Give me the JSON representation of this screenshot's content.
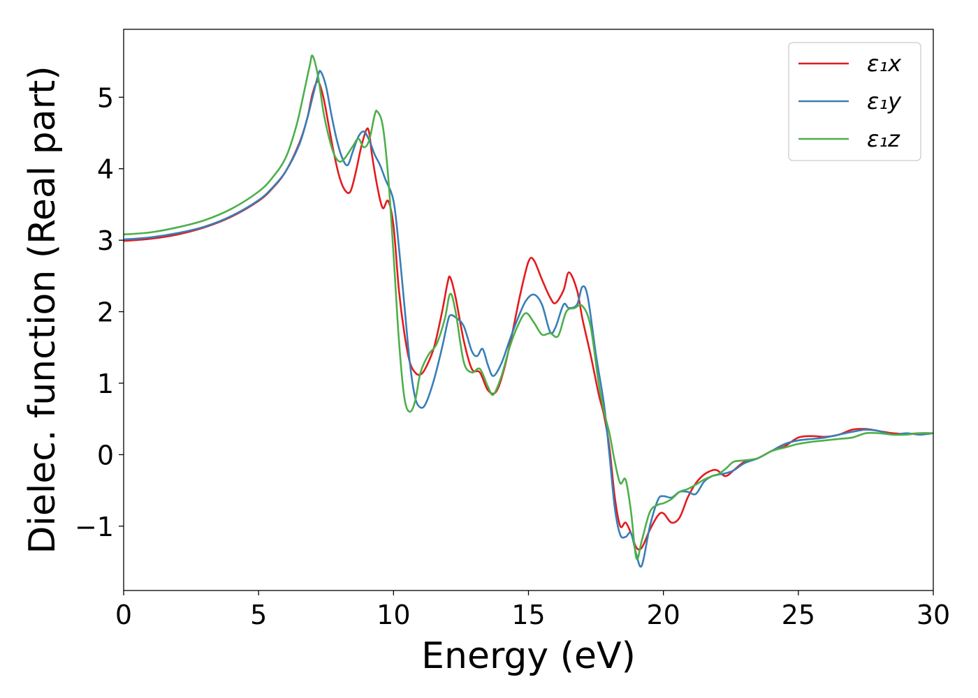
{
  "chart_data": {
    "type": "line",
    "xlabel": "Energy (eV)",
    "ylabel": "Dielec. function (Real part)",
    "xlim": [
      0,
      30
    ],
    "ylim": [
      -1.9,
      5.95
    ],
    "xticks": [
      0,
      5,
      10,
      15,
      20,
      25,
      30
    ],
    "xtick_labels": [
      "0",
      "5",
      "10",
      "15",
      "20",
      "25",
      "30"
    ],
    "yticks": [
      -1,
      0,
      1,
      2,
      3,
      4,
      5
    ],
    "ytick_labels": [
      "−1",
      "0",
      "1",
      "2",
      "3",
      "4",
      "5"
    ],
    "grid": false,
    "legend_position": "top-right",
    "series": [
      {
        "name": "ε₁x",
        "color": "#e41a1c",
        "x": [
          0,
          1,
          2,
          3,
          4,
          5,
          5.5,
          6,
          6.5,
          6.8,
          7.0,
          7.2,
          7.4,
          7.6,
          7.8,
          8.0,
          8.2,
          8.4,
          8.6,
          8.8,
          9.0,
          9.1,
          9.2,
          9.4,
          9.6,
          9.8,
          10.0,
          10.2,
          10.4,
          10.6,
          10.8,
          11.0,
          11.2,
          11.5,
          11.8,
          12.0,
          12.1,
          12.3,
          12.6,
          12.9,
          13.2,
          13.5,
          13.8,
          14.1,
          14.4,
          14.7,
          15.0,
          15.2,
          15.5,
          15.8,
          16.0,
          16.3,
          16.5,
          16.8,
          17.0,
          17.3,
          17.6,
          17.8,
          18.0,
          18.2,
          18.4,
          18.6,
          18.8,
          19.0,
          19.2,
          19.5,
          19.8,
          20.0,
          20.3,
          20.6,
          20.9,
          21.2,
          21.5,
          21.8,
          22.0,
          22.3,
          22.6,
          23.0,
          23.5,
          24.0,
          24.5,
          25.0,
          25.5,
          26.0,
          26.5,
          27.0,
          27.5,
          28.0,
          28.5,
          29.0,
          29.5,
          30.0
        ],
        "values": [
          2.99,
          3.02,
          3.08,
          3.18,
          3.33,
          3.55,
          3.72,
          3.96,
          4.35,
          4.7,
          5.05,
          5.22,
          5.0,
          4.6,
          4.2,
          3.88,
          3.7,
          3.68,
          3.95,
          4.3,
          4.55,
          4.5,
          4.2,
          3.75,
          3.45,
          3.55,
          3.2,
          2.3,
          1.7,
          1.3,
          1.15,
          1.12,
          1.22,
          1.5,
          2.0,
          2.4,
          2.48,
          2.2,
          1.6,
          1.2,
          1.15,
          0.9,
          0.88,
          1.2,
          1.7,
          2.25,
          2.7,
          2.72,
          2.45,
          2.2,
          2.12,
          2.3,
          2.55,
          2.3,
          1.9,
          1.4,
          0.85,
          0.55,
          0.1,
          -0.6,
          -1.0,
          -0.95,
          -1.1,
          -1.3,
          -1.3,
          -1.05,
          -0.85,
          -0.82,
          -0.95,
          -0.88,
          -0.6,
          -0.4,
          -0.28,
          -0.22,
          -0.22,
          -0.3,
          -0.22,
          -0.1,
          -0.05,
          0.05,
          0.12,
          0.24,
          0.26,
          0.25,
          0.28,
          0.35,
          0.36,
          0.33,
          0.3,
          0.29,
          0.3,
          0.3
        ]
      },
      {
        "name": "ε₁y",
        "color": "#377eb8",
        "x": [
          0,
          1,
          2,
          3,
          4,
          5,
          5.5,
          6,
          6.5,
          6.8,
          7.0,
          7.2,
          7.3,
          7.5,
          7.7,
          7.9,
          8.1,
          8.3,
          8.5,
          8.7,
          8.9,
          9.1,
          9.3,
          9.5,
          9.7,
          10.0,
          10.2,
          10.4,
          10.6,
          10.8,
          11.0,
          11.2,
          11.5,
          11.8,
          12.0,
          12.1,
          12.3,
          12.6,
          12.9,
          13.1,
          13.3,
          13.5,
          13.7,
          14.0,
          14.3,
          14.6,
          14.9,
          15.2,
          15.5,
          15.8,
          16.0,
          16.3,
          16.5,
          16.8,
          17.0,
          17.2,
          17.5,
          17.8,
          18.0,
          18.2,
          18.4,
          18.6,
          18.8,
          19.0,
          19.2,
          19.5,
          19.8,
          20.0,
          20.3,
          20.6,
          20.9,
          21.2,
          21.5,
          21.8,
          22.0,
          22.3,
          22.6,
          23.0,
          23.5,
          24.0,
          24.5,
          25.0,
          25.5,
          26.0,
          26.5,
          27.0,
          27.5,
          28.0,
          28.5,
          29.0,
          29.5,
          30.0
        ],
        "values": [
          3.01,
          3.04,
          3.1,
          3.19,
          3.34,
          3.56,
          3.73,
          3.96,
          4.33,
          4.7,
          5.0,
          5.3,
          5.36,
          5.15,
          4.75,
          4.4,
          4.15,
          4.05,
          4.25,
          4.45,
          4.52,
          4.4,
          4.2,
          4.05,
          3.85,
          3.55,
          2.9,
          2.1,
          1.3,
          0.8,
          0.66,
          0.72,
          1.05,
          1.5,
          1.85,
          1.95,
          1.92,
          1.8,
          1.45,
          1.38,
          1.48,
          1.25,
          1.1,
          1.28,
          1.6,
          1.9,
          2.15,
          2.24,
          2.1,
          1.72,
          1.78,
          2.1,
          2.05,
          2.1,
          2.35,
          2.2,
          1.4,
          0.7,
          0.0,
          -0.75,
          -1.12,
          -1.15,
          -1.1,
          -1.4,
          -1.55,
          -1.0,
          -0.63,
          -0.58,
          -0.6,
          -0.52,
          -0.52,
          -0.55,
          -0.38,
          -0.3,
          -0.28,
          -0.26,
          -0.22,
          -0.12,
          -0.05,
          0.05,
          0.15,
          0.2,
          0.22,
          0.24,
          0.28,
          0.32,
          0.35,
          0.33,
          0.28,
          0.3,
          0.28,
          0.3
        ]
      },
      {
        "name": "ε₁z",
        "color": "#4daf4a",
        "x": [
          0,
          1,
          2,
          3,
          4,
          5,
          5.5,
          6,
          6.4,
          6.7,
          6.9,
          7.0,
          7.2,
          7.4,
          7.6,
          7.8,
          8.0,
          8.2,
          8.5,
          8.7,
          8.9,
          9.1,
          9.3,
          9.4,
          9.6,
          9.8,
          10.0,
          10.2,
          10.4,
          10.6,
          10.8,
          11.0,
          11.3,
          11.6,
          11.9,
          12.1,
          12.3,
          12.6,
          12.9,
          13.2,
          13.5,
          13.7,
          14.0,
          14.3,
          14.6,
          14.9,
          15.2,
          15.5,
          15.8,
          16.1,
          16.4,
          16.7,
          17.0,
          17.3,
          17.6,
          17.8,
          18.0,
          18.2,
          18.4,
          18.6,
          18.8,
          19.0,
          19.2,
          19.5,
          19.8,
          20.0,
          20.3,
          20.6,
          20.9,
          21.2,
          21.5,
          21.8,
          22.0,
          22.3,
          22.6,
          23.0,
          23.5,
          24.0,
          24.5,
          25.0,
          25.5,
          26.0,
          26.5,
          27.0,
          27.5,
          28.0,
          28.5,
          29.0,
          29.5,
          30.0
        ],
        "values": [
          3.08,
          3.11,
          3.18,
          3.28,
          3.44,
          3.68,
          3.87,
          4.15,
          4.6,
          5.1,
          5.45,
          5.58,
          5.3,
          4.8,
          4.45,
          4.2,
          4.1,
          4.15,
          4.32,
          4.42,
          4.3,
          4.4,
          4.75,
          4.8,
          4.6,
          3.9,
          2.8,
          1.6,
          0.8,
          0.6,
          0.75,
          1.15,
          1.4,
          1.55,
          1.9,
          2.25,
          2.0,
          1.3,
          1.15,
          1.2,
          0.95,
          0.84,
          1.1,
          1.5,
          1.8,
          1.98,
          1.85,
          1.68,
          1.7,
          1.66,
          2.0,
          2.05,
          2.08,
          1.8,
          1.0,
          0.6,
          0.3,
          -0.1,
          -0.4,
          -0.35,
          -0.8,
          -1.45,
          -1.2,
          -0.8,
          -0.7,
          -0.68,
          -0.62,
          -0.52,
          -0.48,
          -0.42,
          -0.35,
          -0.3,
          -0.28,
          -0.2,
          -0.1,
          -0.08,
          -0.05,
          0.05,
          0.1,
          0.15,
          0.18,
          0.2,
          0.22,
          0.24,
          0.3,
          0.3,
          0.28,
          0.28,
          0.3,
          0.3
        ]
      }
    ]
  }
}
